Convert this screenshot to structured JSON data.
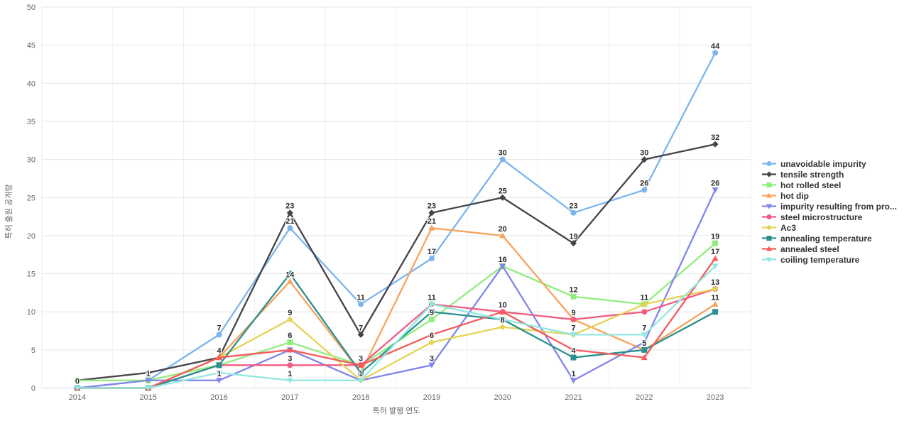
{
  "chart_data": {
    "type": "line",
    "title": "",
    "xlabel": "특허 발행 연도",
    "ylabel": "특허 출원 공개량",
    "categories": [
      "2014",
      "2015",
      "2016",
      "2017",
      "2018",
      "2019",
      "2020",
      "2021",
      "2022",
      "2023"
    ],
    "ylim": [
      0,
      50
    ],
    "ytick_interval": 5,
    "yticks": [
      0,
      5,
      10,
      15,
      20,
      25,
      30,
      35,
      40,
      45,
      50
    ],
    "grid": true,
    "legend_position": "right",
    "data_labels": "shown above points, bold, overlapping labels hidden",
    "colors": {
      "grid_line": "#e6e6e6",
      "axis_line": "#ccd6eb",
      "tick_label": "#666666",
      "data_label": "#2a2a2b",
      "legend_text": "#333333",
      "background": "#ffffff"
    },
    "series": [
      {
        "name": "unavoidable impurity",
        "color": "#7cb5ec",
        "marker": "circle",
        "values": [
          0,
          1,
          7,
          21,
          11,
          17,
          30,
          23,
          26,
          44
        ]
      },
      {
        "name": "tensile strength",
        "color": "#434348",
        "marker": "diamond",
        "values": [
          1,
          2,
          4,
          23,
          7,
          23,
          25,
          19,
          30,
          32
        ]
      },
      {
        "name": "hot rolled steel",
        "color": "#90ed7d",
        "marker": "square",
        "values": [
          1,
          1,
          3,
          6,
          3,
          9,
          16,
          12,
          11,
          19
        ]
      },
      {
        "name": "hot dip",
        "color": "#f7a35c",
        "marker": "triangle",
        "values": [
          0,
          0,
          4,
          14,
          2,
          21,
          20,
          9,
          5,
          11
        ]
      },
      {
        "name": "impurity resulting from pro...",
        "color": "#8085e9",
        "marker": "triangle-down",
        "values": [
          0,
          1,
          1,
          5,
          1,
          3,
          16,
          1,
          6,
          26
        ]
      },
      {
        "name": "steel microstructure",
        "color": "#f15c80",
        "marker": "circle",
        "values": [
          0,
          0,
          3,
          3,
          3,
          11,
          10,
          9,
          10,
          13
        ]
      },
      {
        "name": "Ac3",
        "color": "#e4d354",
        "marker": "diamond",
        "values": [
          0,
          0,
          4,
          9,
          1,
          6,
          8,
          7,
          11,
          13
        ]
      },
      {
        "name": "annealing temperature",
        "color": "#2b908f",
        "marker": "square",
        "values": [
          0,
          0,
          3,
          15,
          2,
          10,
          9,
          4,
          5,
          10
        ]
      },
      {
        "name": "annealed steel",
        "color": "#f45b5b",
        "marker": "triangle",
        "values": [
          0,
          0,
          4,
          5,
          3,
          7,
          10,
          5,
          4,
          17
        ]
      },
      {
        "name": "coiling temperature",
        "color": "#91e8e1",
        "marker": "triangle-down",
        "values": [
          0,
          0,
          2,
          1,
          1,
          11,
          9,
          7,
          7,
          16
        ]
      }
    ]
  }
}
